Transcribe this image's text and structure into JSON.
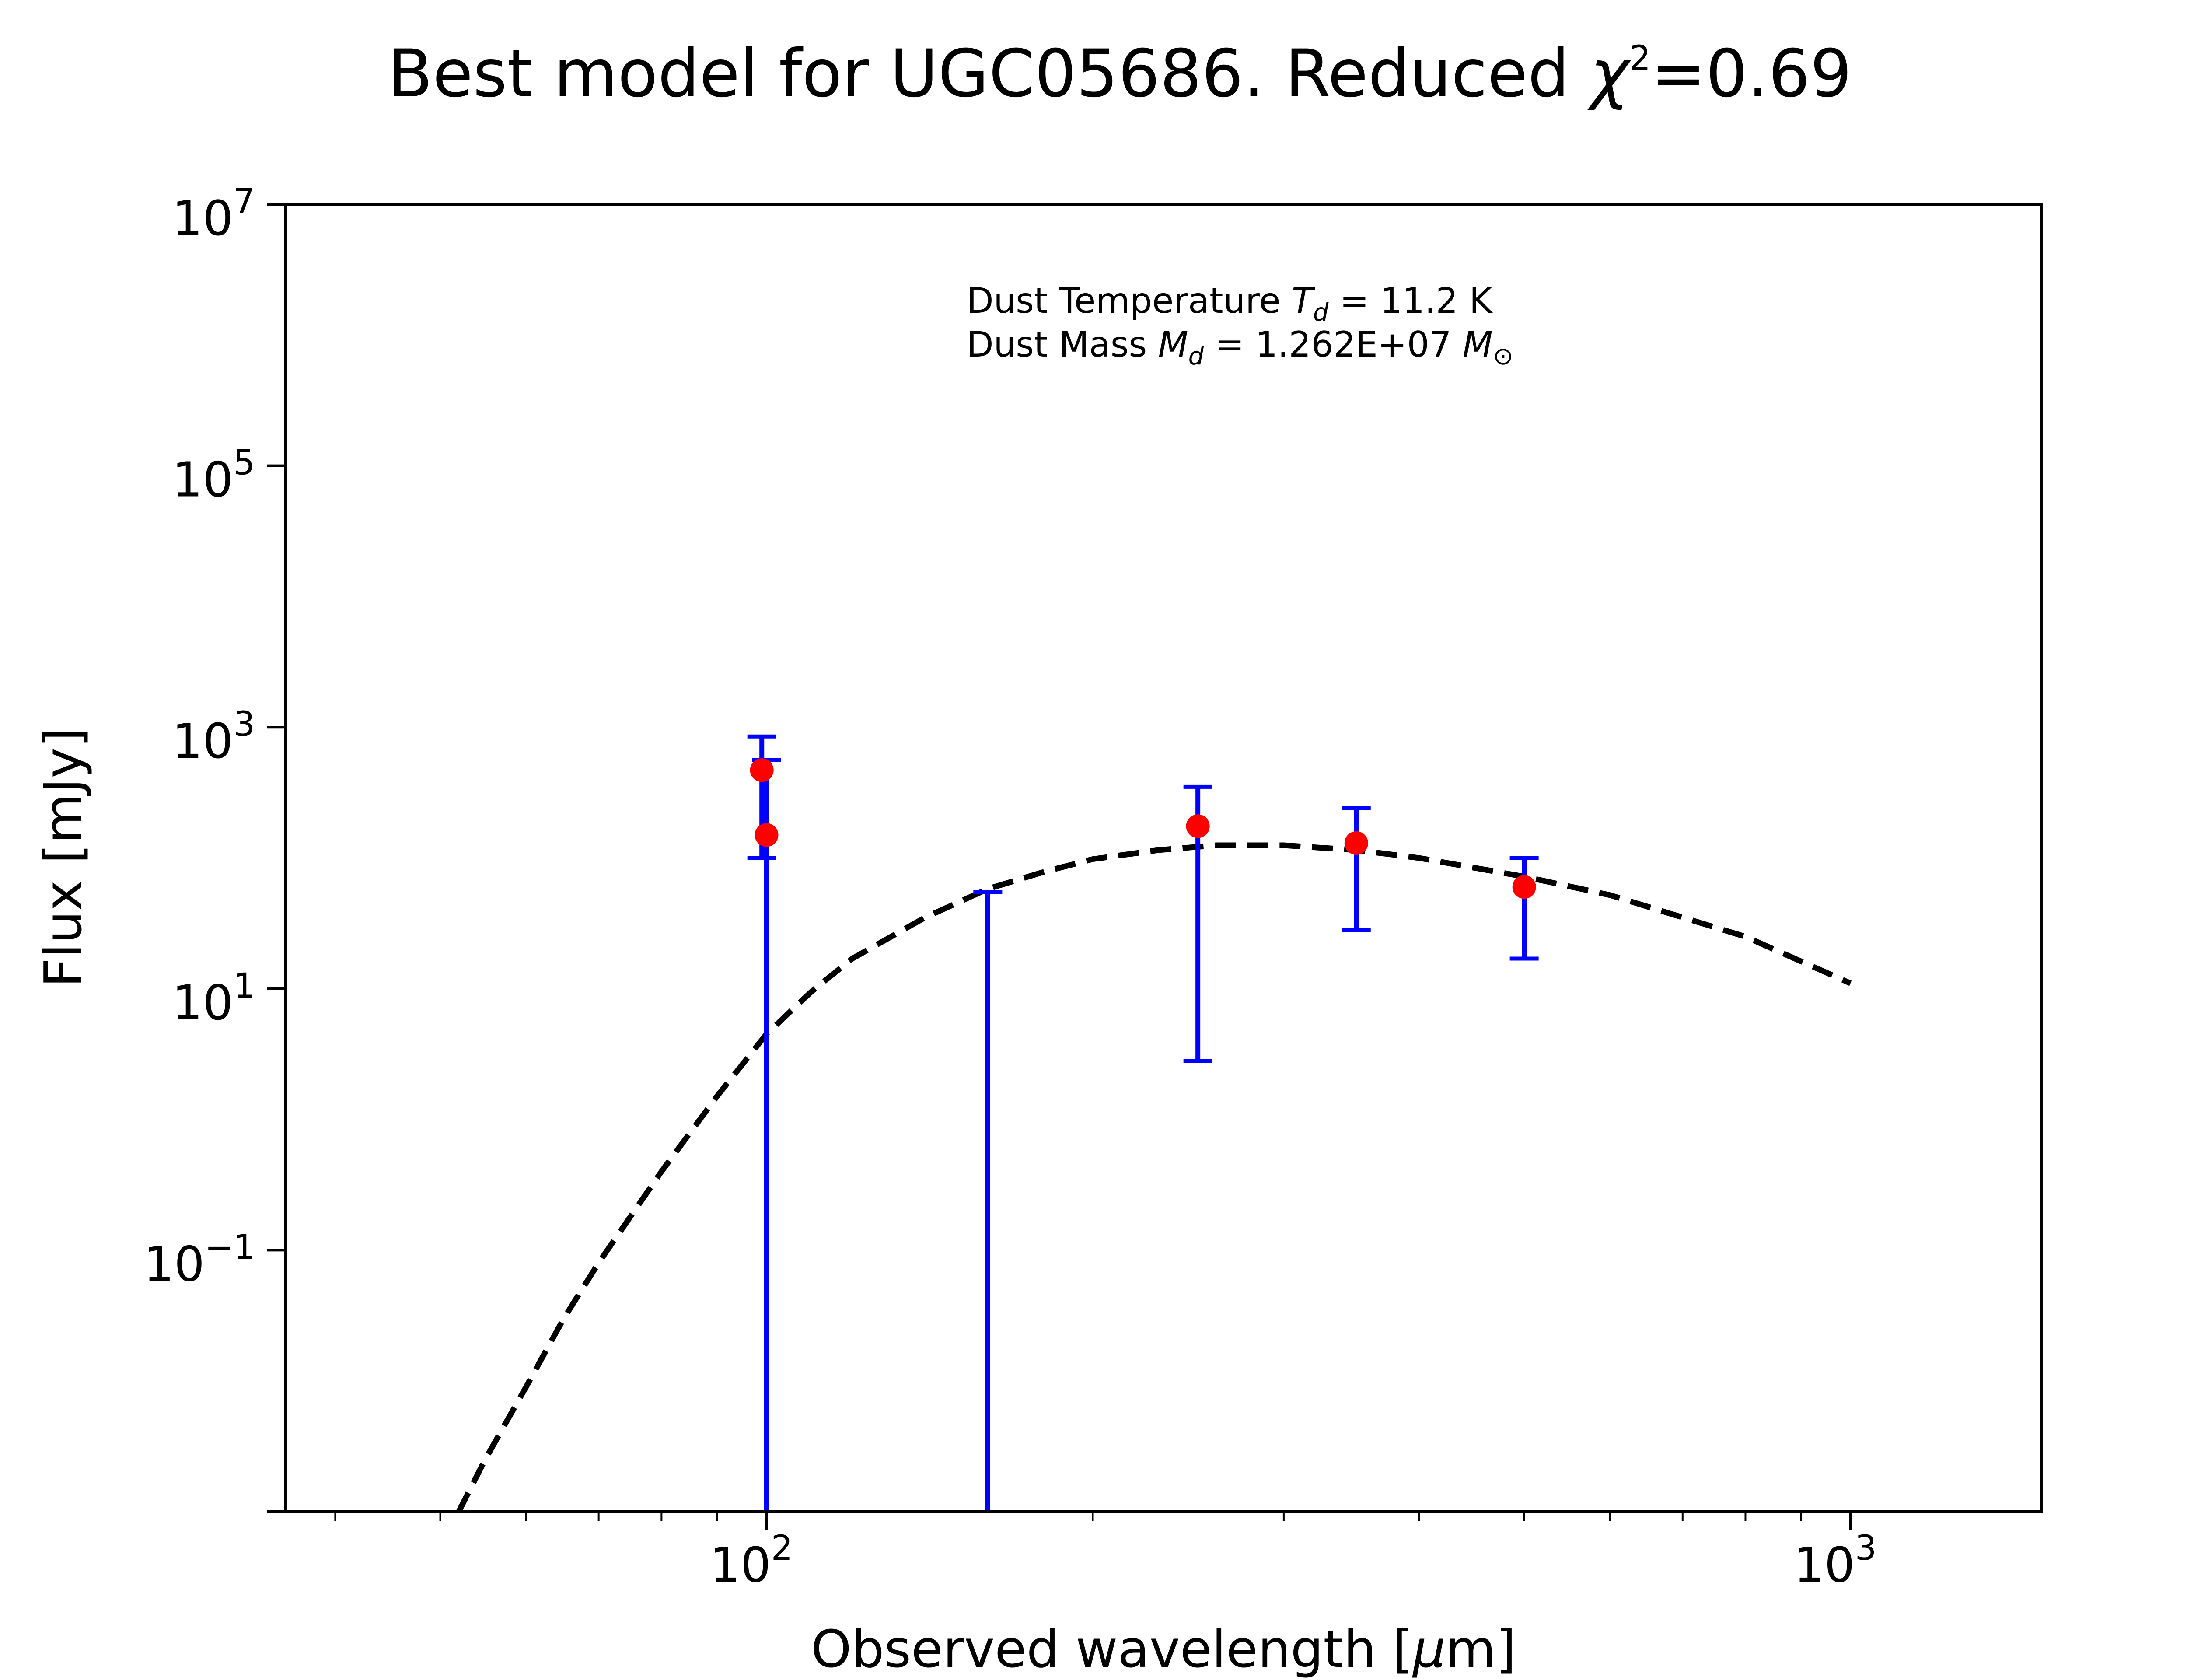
{
  "title_parts": {
    "main": "Best model for UGC05686. Reduced ",
    "chi": "χ",
    "exp": "2",
    "value": "=0.69"
  },
  "axes": {
    "xlabel": {
      "pre": "Observed wavelength [",
      "mu": "μ",
      "post": "m]"
    },
    "ylabel": "Flux [mJy]",
    "x_major_ticks": [
      {
        "base": "10",
        "exp": "2",
        "value": 100
      },
      {
        "base": "10",
        "exp": "3",
        "value": 1000
      }
    ],
    "y_major_ticks": [
      {
        "base": "10",
        "exp": "7",
        "value": 10000000
      },
      {
        "base": "10",
        "exp": "5",
        "value": 100000
      },
      {
        "base": "10",
        "exp": "3",
        "value": 1000
      },
      {
        "base": "10",
        "exp": "1",
        "value": 10
      },
      {
        "base": "10",
        "exp": "−1",
        "value": 0.1
      }
    ]
  },
  "annotation": {
    "line1": {
      "pre": "Dust Temperature ",
      "sym": "T",
      "sub": "d",
      "post": " = 11.2 K"
    },
    "line2": {
      "pre": "Dust Mass ",
      "sym": "M",
      "sub": "d",
      "mid": " = 1.262E+07 ",
      "sym2": "M",
      "sub2": "⊙"
    }
  },
  "chart_data": {
    "type": "scatter",
    "xscale": "log",
    "yscale": "log",
    "xlim": [
      36,
      1500
    ],
    "ylim": [
      0.001,
      10000000
    ],
    "grid": false,
    "points": [
      {
        "x": 99,
        "y": 470,
        "yerr_low": 100,
        "yerr_high": 850
      },
      {
        "x": 100,
        "y": 150,
        "yerr_low": 0.001,
        "yerr_high": 560
      },
      {
        "x": 160,
        "y": 0.001,
        "yerr_low": 0.001,
        "yerr_high": 55
      },
      {
        "x": 250,
        "y": 175,
        "yerr_low": 2.8,
        "yerr_high": 350
      },
      {
        "x": 350,
        "y": 130,
        "yerr_low": 28,
        "yerr_high": 240
      },
      {
        "x": 500,
        "y": 60,
        "yerr_low": 17,
        "yerr_high": 100
      }
    ],
    "model": {
      "style": "dashed",
      "x": [
        52,
        55,
        60,
        65,
        70,
        80,
        90,
        100,
        110,
        120,
        140,
        160,
        180,
        200,
        230,
        260,
        300,
        350,
        400,
        500,
        600,
        800,
        1000
      ],
      "y": [
        0.001,
        0.0025,
        0.009,
        0.03,
        0.08,
        0.4,
        1.5,
        4.5,
        9.5,
        17,
        35,
        58,
        78,
        98,
        115,
        125,
        125,
        115,
        100,
        72,
        52,
        25,
        11
      ]
    },
    "colors": {
      "points": "#ff0000",
      "errorbars": "#0000ff",
      "model": "#000000"
    }
  }
}
